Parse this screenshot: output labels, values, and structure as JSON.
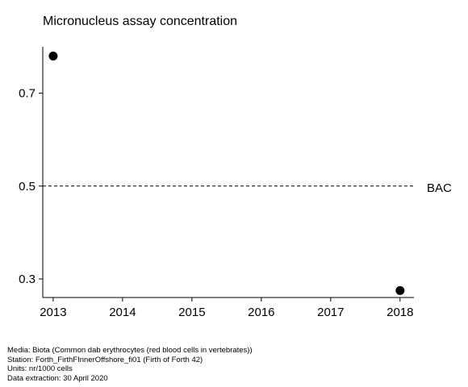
{
  "title": "Micronucleus assay concentration",
  "chart_data": {
    "type": "scatter",
    "title": "Micronucleus assay concentration",
    "xlabel": "",
    "ylabel": "",
    "x_ticks": [
      2013,
      2014,
      2015,
      2016,
      2017,
      2018
    ],
    "y_ticks": [
      0.3,
      0.5,
      0.7
    ],
    "xlim": [
      2012.85,
      2018.2
    ],
    "ylim": [
      0.26,
      0.8
    ],
    "points": [
      {
        "x": 2013,
        "y": 0.78
      },
      {
        "x": 2018,
        "y": 0.275
      }
    ],
    "reference_lines": [
      {
        "label": "BAC",
        "y": 0.5,
        "style": "dashed"
      }
    ],
    "grid": false,
    "legend": "none"
  },
  "footer": {
    "media": "Media: Biota (Common dab erythrocytes (red blood cells in vertebrates))",
    "station": "Station: Forth_FirthFInnerOffshore_fi01 (Firth of Forth 42)",
    "units": "Units:  nr/1000 cells",
    "extraction": "Data extraction: 30 April 2020"
  },
  "colors": {
    "points": "#000000",
    "axes": "#000000",
    "background": "#ffffff"
  }
}
